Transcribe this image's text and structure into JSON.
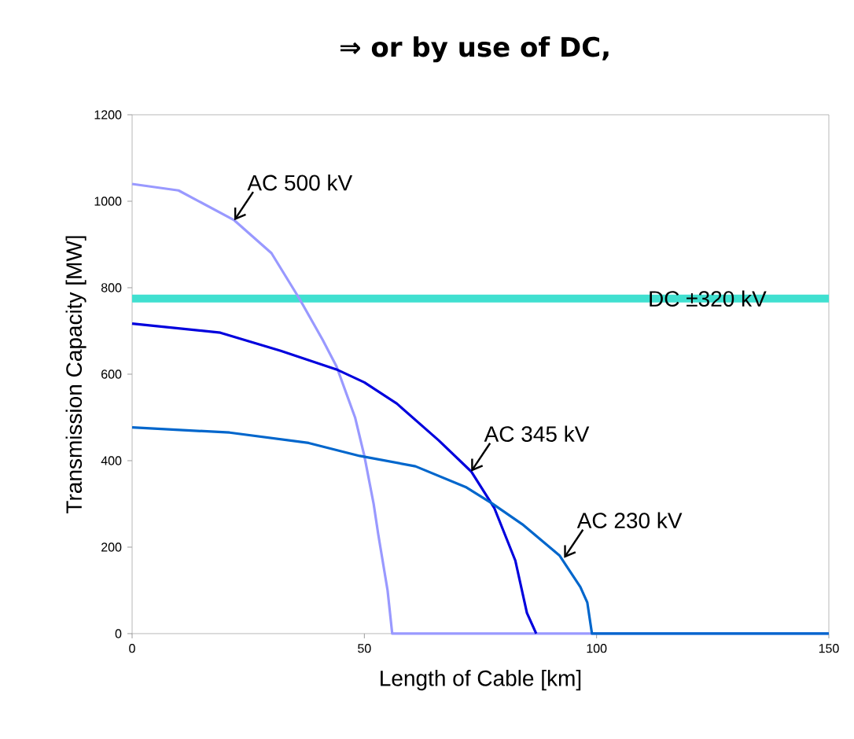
{
  "chart_data": {
    "type": "line",
    "title": "⇒ or by use of DC,",
    "xlabel": "Length of Cable [km]",
    "ylabel": "Transmission Capacity [MW]",
    "xlim": [
      0,
      150
    ],
    "ylim": [
      0,
      1200
    ],
    "xticks": [
      0,
      50,
      100,
      150
    ],
    "yticks": [
      0,
      200,
      400,
      600,
      800,
      1000,
      1200
    ],
    "grid": false,
    "marker": "none",
    "line_style": "solid",
    "series": [
      {
        "color": "#9999ff",
        "x": [
          0,
          10,
          22,
          30,
          36,
          41,
          44,
          48,
          50,
          52,
          53,
          55,
          56,
          150
        ],
        "values": [
          1040,
          1025,
          956,
          880,
          775,
          680,
          618,
          500,
          411,
          300,
          229,
          100,
          0,
          0
        ]
      },
      {
        "color": "#0000dd",
        "x": [
          0,
          19,
          32,
          44,
          50,
          57,
          66,
          73,
          78,
          82.5,
          85,
          87
        ],
        "values": [
          717,
          696,
          654,
          611,
          581,
          532,
          447,
          375,
          290,
          169,
          48,
          0
        ]
      },
      {
        "color": "#0066cc",
        "x": [
          0,
          21,
          38,
          49,
          61,
          72,
          77.5,
          84,
          92,
          96.5,
          98,
          99,
          150
        ],
        "values": [
          477,
          465,
          441,
          411,
          387,
          338,
          301,
          253,
          181,
          108,
          72,
          0,
          0
        ]
      }
    ],
    "ref_lines": [
      {
        "axis": "y",
        "value": 775,
        "label": "DC ±320 kV",
        "color": "#40e0d0"
      }
    ],
    "annotations": [
      {
        "text": "AC 500 kV",
        "x": 22,
        "y": 956
      },
      {
        "text": "AC 345 kV",
        "x": 73,
        "y": 375
      },
      {
        "text": "AC 230 kV",
        "x": 93,
        "y": 175
      }
    ]
  }
}
